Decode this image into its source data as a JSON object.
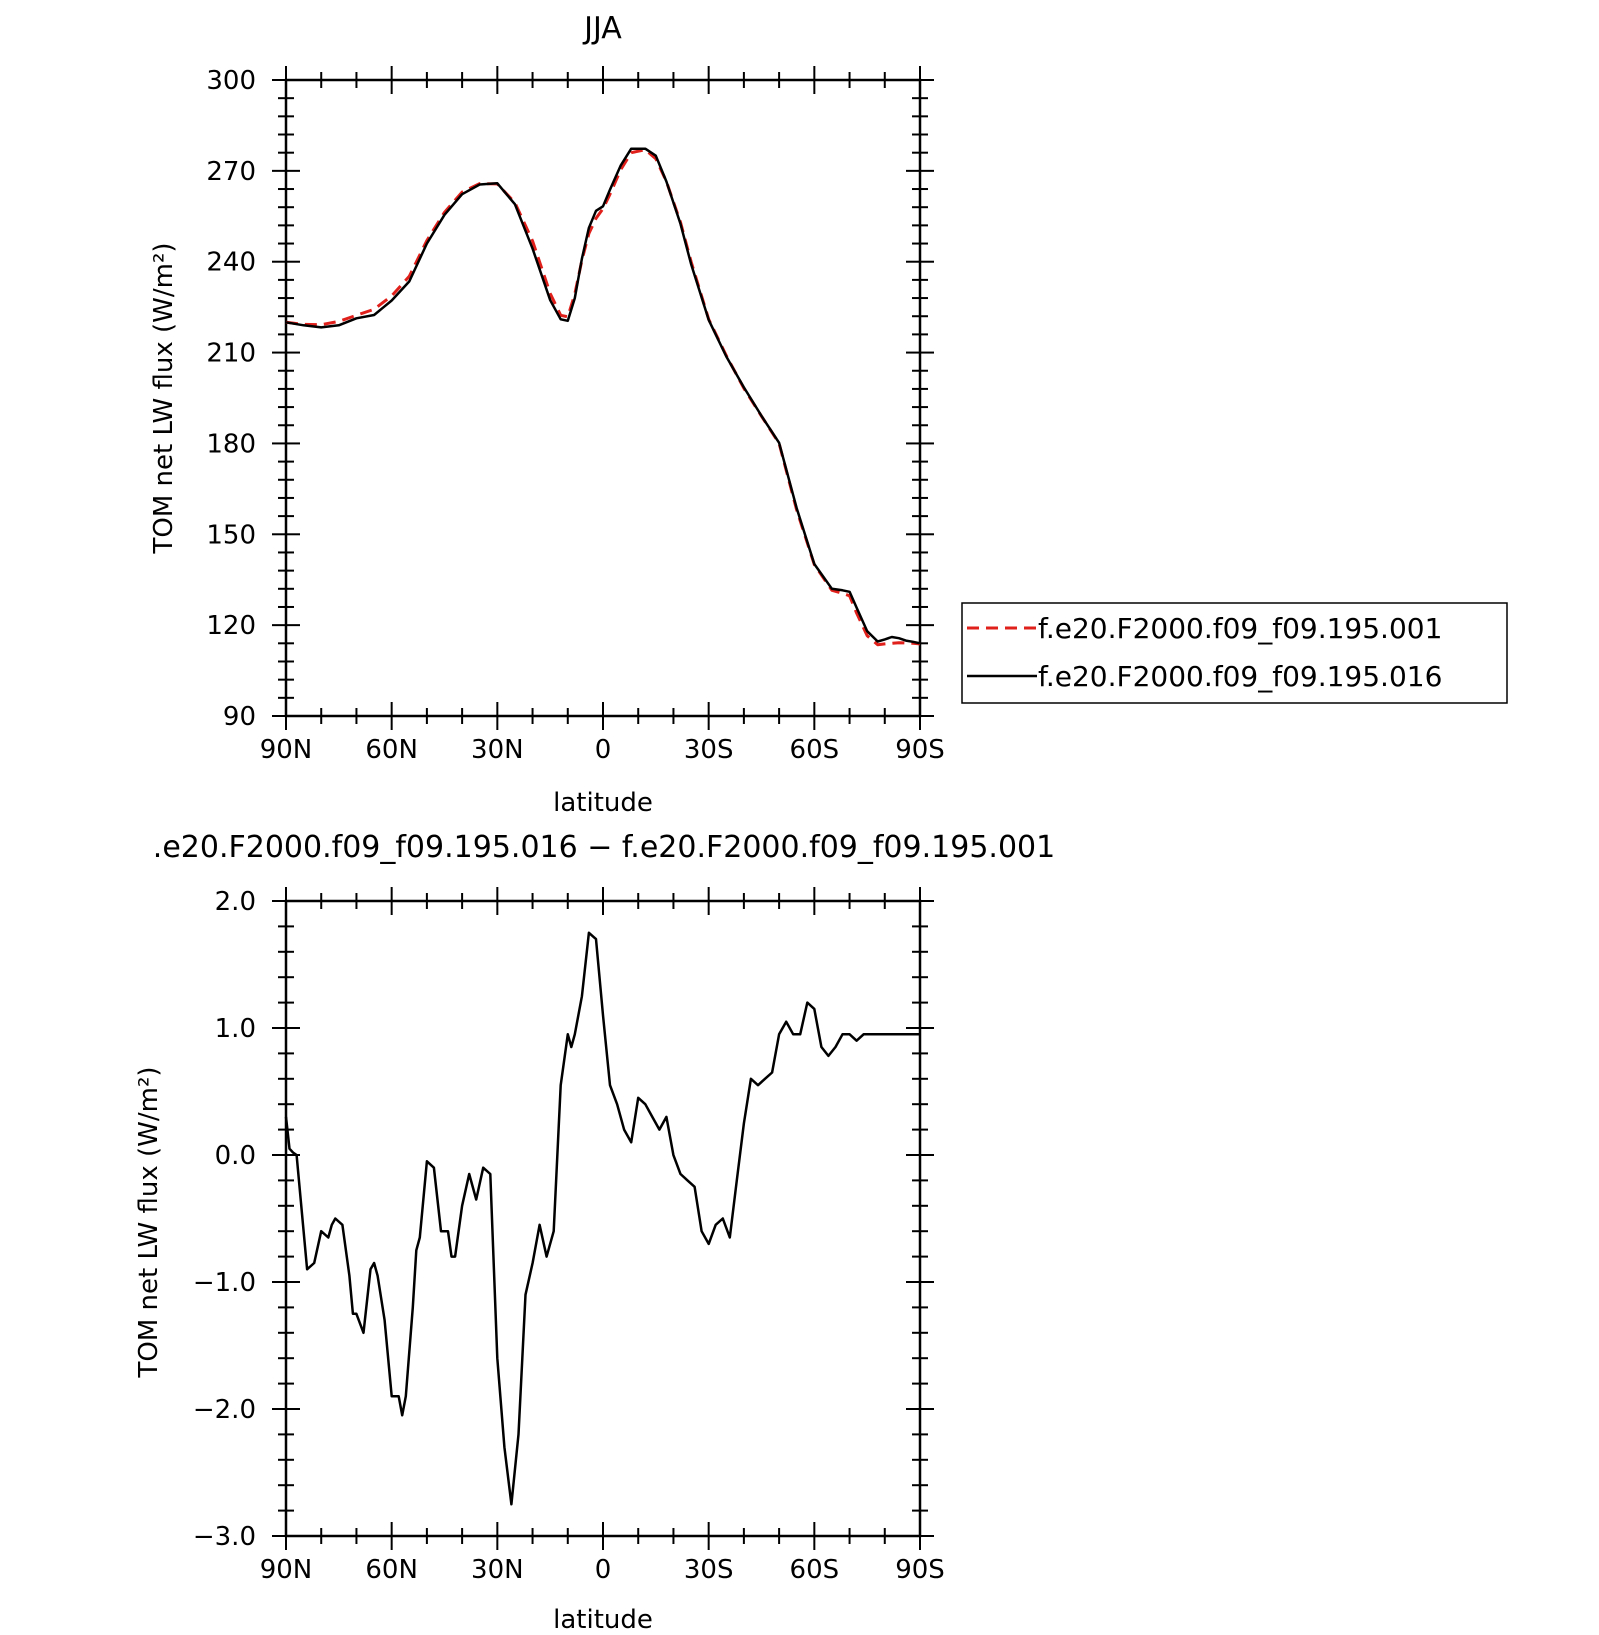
{
  "chart_data": [
    {
      "type": "line",
      "title": "JJA",
      "xlabel": "latitude",
      "ylabel": "TOM net LW flux (W/m²)",
      "xlim": [
        90,
        -90
      ],
      "ylim": [
        90,
        300
      ],
      "xticks": [
        90,
        60,
        30,
        0,
        -30,
        -60,
        -90
      ],
      "xtick_labels": [
        "90N",
        "60N",
        "30N",
        "0",
        "30S",
        "60S",
        "90S"
      ],
      "yticks": [
        90,
        120,
        150,
        180,
        210,
        240,
        270,
        300
      ],
      "ytick_labels": [
        "90",
        "120",
        "150",
        "180",
        "210",
        "240",
        "270",
        "300"
      ],
      "legend_position": "right",
      "series": [
        {
          "name": "f.e20.F2000.f09_f09.195.001",
          "color": "#e0201b",
          "dash": "dashed",
          "x": [
            90,
            85,
            80,
            75,
            70,
            65,
            60,
            55,
            50,
            45,
            40,
            35,
            30,
            25,
            20,
            15,
            12,
            10,
            8,
            6,
            4,
            2,
            0,
            -2,
            -5,
            -8,
            -12,
            -15,
            -18,
            -22,
            -25,
            -30,
            -35,
            -40,
            -45,
            -50,
            -55,
            -60,
            -65,
            -68,
            -70,
            -72,
            -75,
            -78,
            -80,
            -82,
            -84,
            -86,
            -88,
            -90
          ],
          "y": [
            220,
            219.3,
            219.2,
            220.3,
            222.3,
            224.3,
            228.7,
            235.2,
            247,
            256.3,
            263,
            265.8,
            265.7,
            259.5,
            246.8,
            229.5,
            222.3,
            221.8,
            229.3,
            240.5,
            249.3,
            254.3,
            257.5,
            262.3,
            270.3,
            276,
            277,
            274,
            266.5,
            253,
            240,
            221,
            209,
            198.2,
            189,
            180,
            158,
            140,
            131.5,
            130.5,
            129.7,
            124,
            116.5,
            113.5,
            113.8,
            114,
            114.2,
            114.1,
            114,
            113.8
          ]
        },
        {
          "name": "f.e20.F2000.f09_f09.195.016",
          "color": "#000000",
          "dash": "solid",
          "x": [
            90,
            85,
            80,
            75,
            70,
            65,
            60,
            55,
            50,
            45,
            40,
            35,
            30,
            25,
            20,
            15,
            12,
            10,
            8,
            6,
            4,
            2,
            0,
            -2,
            -5,
            -8,
            -12,
            -15,
            -18,
            -22,
            -25,
            -30,
            -35,
            -40,
            -45,
            -50,
            -55,
            -60,
            -65,
            -68,
            -70,
            -72,
            -75,
            -78,
            -80,
            -82,
            -84,
            -86,
            -88,
            -90
          ],
          "y": [
            220,
            219,
            218.3,
            219,
            221.3,
            222.4,
            227.2,
            233.5,
            246,
            255.5,
            262.3,
            265.5,
            265.9,
            259,
            244.3,
            227.3,
            221,
            220.5,
            228,
            241,
            251.2,
            256.8,
            258.3,
            263.8,
            271.7,
            277.3,
            277.3,
            275,
            266.5,
            252.5,
            239.2,
            220.8,
            208.7,
            198.5,
            189.1,
            180.2,
            158.6,
            140.2,
            132,
            131.5,
            131,
            125.8,
            118,
            114.6,
            115.3,
            116.1,
            115.7,
            114.9,
            114.5,
            114
          ]
        }
      ]
    },
    {
      "type": "line",
      "title": ".e20.F2000.f09_f09.195.016 − f.e20.F2000.f09_f09.195.001",
      "xlabel": "latitude",
      "ylabel": "TOM net LW flux (W/m²)",
      "xlim": [
        90,
        -90
      ],
      "ylim": [
        -3.0,
        2.0
      ],
      "xticks": [
        90,
        60,
        30,
        0,
        -30,
        -60,
        -90
      ],
      "xtick_labels": [
        "90N",
        "60N",
        "30N",
        "0",
        "30S",
        "60S",
        "90S"
      ],
      "yticks": [
        -3.0,
        -2.0,
        -1.0,
        0.0,
        1.0,
        2.0
      ],
      "ytick_labels": [
        "−3.0",
        "−2.0",
        "−1.0",
        "0.0",
        "1.0",
        "2.0"
      ],
      "series": [
        {
          "color": "#000000",
          "dash": "solid",
          "x": [
            90,
            89,
            88,
            87,
            86,
            84,
            82,
            80,
            78,
            77,
            76,
            74,
            72,
            71,
            70,
            68,
            66,
            65,
            64,
            62,
            60,
            58,
            57,
            56,
            54,
            53,
            52,
            50,
            48,
            46,
            44,
            43,
            42,
            40,
            38,
            36,
            34,
            32,
            30,
            28,
            26,
            24,
            22,
            20,
            18,
            16,
            14,
            12,
            10,
            9,
            8,
            6,
            4,
            2,
            0,
            -2,
            -4,
            -6,
            -8,
            -10,
            -12,
            -14,
            -16,
            -18,
            -20,
            -22,
            -24,
            -26,
            -28,
            -30,
            -32,
            -34,
            -36,
            -38,
            -40,
            -42,
            -44,
            -46,
            -48,
            -50,
            -52,
            -54,
            -56,
            -58,
            -60,
            -62,
            -64,
            -66,
            -68,
            -70,
            -72,
            -74,
            -76,
            -78,
            -80,
            -82,
            -84,
            -86,
            -88,
            -90
          ],
          "y": [
            0.3,
            0.05,
            0.02,
            0.0,
            -0.3,
            -0.9,
            -0.85,
            -0.6,
            -0.65,
            -0.55,
            -0.5,
            -0.55,
            -0.95,
            -1.25,
            -1.25,
            -1.4,
            -0.9,
            -0.85,
            -0.95,
            -1.3,
            -1.9,
            -1.9,
            -2.05,
            -1.9,
            -1.2,
            -0.75,
            -0.65,
            -0.05,
            -0.1,
            -0.6,
            -0.6,
            -0.8,
            -0.8,
            -0.4,
            -0.15,
            -0.35,
            -0.1,
            -0.15,
            -1.6,
            -2.3,
            -2.75,
            -2.2,
            -1.1,
            -0.85,
            -0.55,
            -0.8,
            -0.6,
            0.55,
            0.95,
            0.85,
            0.95,
            1.25,
            1.75,
            1.7,
            1.1,
            0.55,
            0.4,
            0.2,
            0.1,
            0.45,
            0.4,
            0.3,
            0.2,
            0.3,
            0.0,
            -0.15,
            -0.2,
            -0.25,
            -0.6,
            -0.7,
            -0.55,
            -0.5,
            -0.65,
            -0.2,
            0.25,
            0.6,
            0.55,
            0.6,
            0.65,
            0.95,
            1.05,
            0.95,
            0.95,
            1.2,
            1.15,
            0.85,
            0.78,
            0.85,
            0.95,
            0.95,
            0.9,
            0.95,
            0.95,
            0.95,
            0.95,
            0.95,
            0.95,
            0.95,
            0.95,
            0.95
          ]
        }
      ]
    }
  ]
}
